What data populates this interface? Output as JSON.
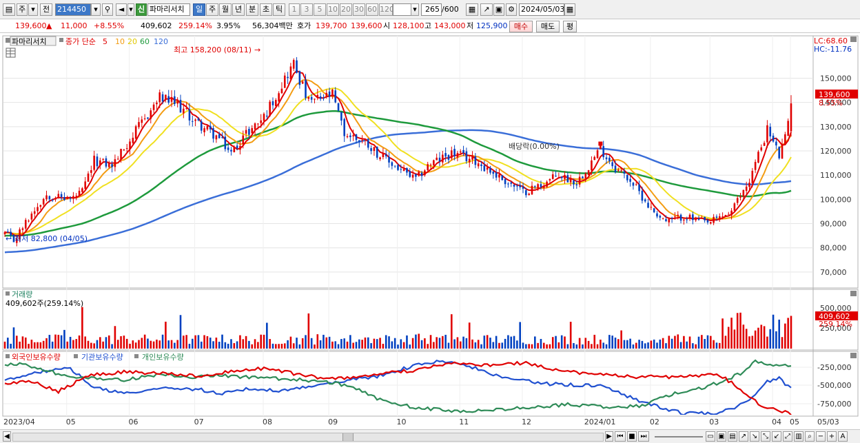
{
  "toolbar": {
    "market_select": "주",
    "prev_btn": "전",
    "stock_code": "214450",
    "type_badge": "신",
    "stock_name": "파마리서치",
    "periods": [
      "일",
      "주",
      "월",
      "년",
      "분",
      "초",
      "틱"
    ],
    "selected_period": "일",
    "intervals": [
      "1",
      "3",
      "5",
      "10",
      "20",
      "30",
      "60",
      "120"
    ],
    "count": "265",
    "count_total": "/600",
    "date": "2024/05/03"
  },
  "pricebar": {
    "price": "139,600",
    "arrow": "▲",
    "change": "11,000",
    "change_pct": "+8.55%",
    "volume": "409,602",
    "volume_pct": "259.14%",
    "turnover": "3.95%",
    "amount": "56,304백만",
    "bid_label": "호가",
    "ask": "139,700",
    "bid": "139,600",
    "open_label": "시",
    "open": "128,100",
    "high_label": "고",
    "high": "143,000",
    "low_label": "저",
    "low": "125,900",
    "buy": "매수",
    "sell": "매도",
    "avg": "평"
  },
  "main_panel": {
    "name_tag": "파마리서치",
    "legend_prefix": "종가 단순",
    "ma_periods": [
      "5",
      "10",
      "20",
      "60",
      "120"
    ],
    "lc": "LC:68.60",
    "hc": "HC:-11.76",
    "price_tag": "139,600",
    "price_pct": "8.55%",
    "high_note": "최고 158,200 (08/11)",
    "low_note": "최저 82,800 (04/05)",
    "dividend_note": "배당락(0.00%)"
  },
  "volume_panel": {
    "title": "거래량",
    "info": "409,602주(259.14%)",
    "tag": "409,602",
    "tag_pct": "259.14%"
  },
  "holdings_panel": {
    "series_labels": [
      "외국인보유수량",
      "기관보유수량",
      "개인보유수량"
    ]
  },
  "colors": {
    "up": "#e00000",
    "down": "#0040c0",
    "ma5": "#e00000",
    "ma10": "#f39c12",
    "ma20": "#f0e020",
    "ma60": "#1e9a3c",
    "ma120": "#3a6ed8",
    "foreign": "#2050d0",
    "institution": "#2e8b57",
    "individual": "#e00000"
  },
  "icons": [
    "layout-icon",
    "dropdown-icon",
    "search-icon",
    "speaker-icon",
    "chart-grid-icon",
    "draw-icon",
    "save-icon",
    "settings-icon",
    "calendar-icon"
  ],
  "chart_data": {
    "type": "candlestick",
    "x_labels": [
      "2023/04",
      "05",
      "06",
      "07",
      "08",
      "09",
      "10",
      "11",
      "12",
      "2024/01",
      "02",
      "03",
      "04",
      "05",
      "05/03"
    ],
    "price_axis": [
      "150,000",
      "140,000",
      "130,000",
      "120,000",
      "110,000",
      "100,000",
      "90,000",
      "80,000",
      "70,000"
    ],
    "price_range": [
      64000,
      163500
    ],
    "volume_axis": [
      "500,000",
      "250,000"
    ],
    "holdings_axis": [
      "-250,000",
      "-500,000",
      "-750,000"
    ],
    "last_close": 139600,
    "high": {
      "value": 158200,
      "date": "08/11"
    },
    "low": {
      "value": 82800,
      "date": "04/05"
    },
    "moving_averages": [
      "5",
      "10",
      "20",
      "60",
      "120"
    ]
  }
}
